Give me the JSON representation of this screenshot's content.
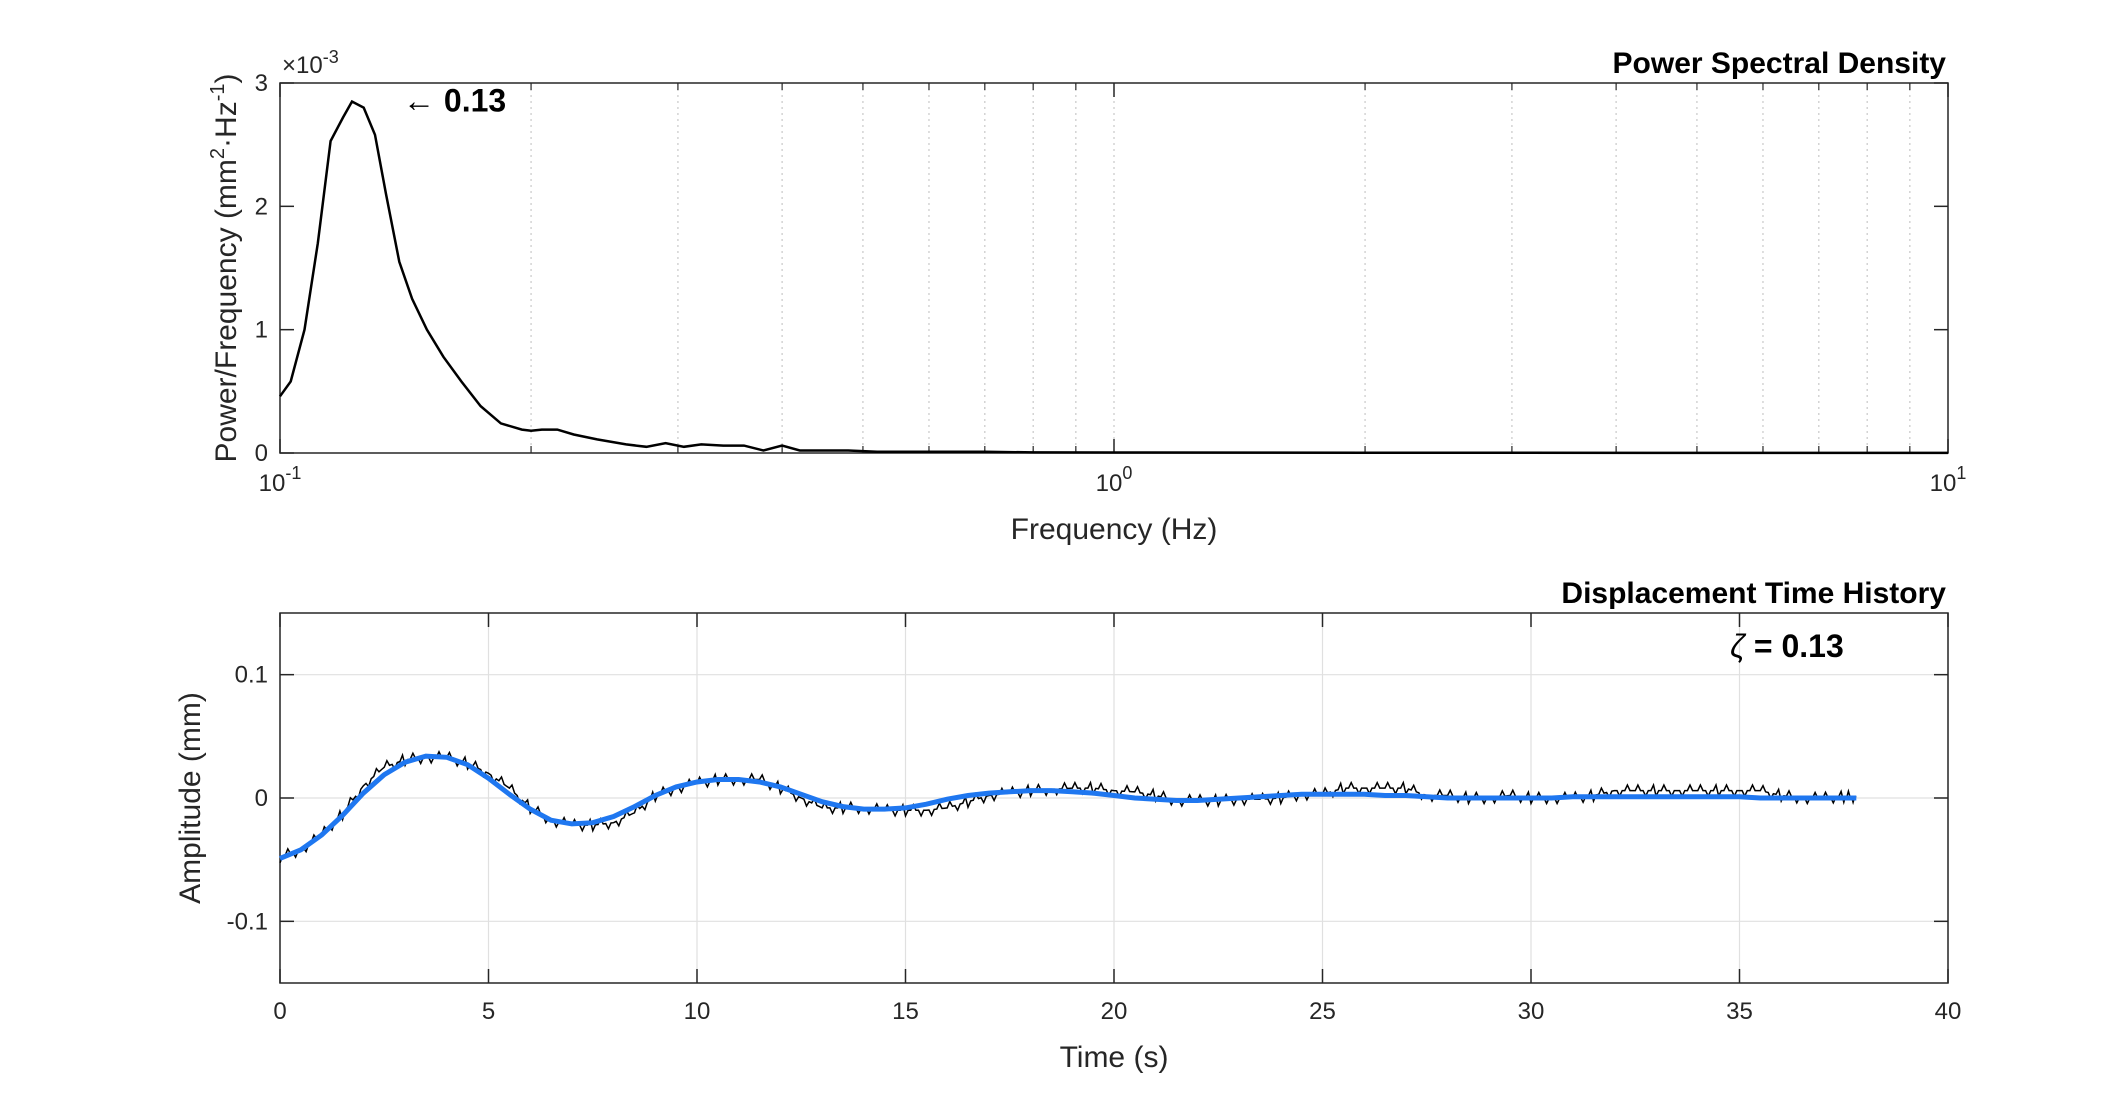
{
  "chart_data": [
    {
      "type": "line",
      "title": "Power Spectral Density",
      "xlabel": "Frequency (Hz)",
      "ylabel": "Power/Frequency (mm²·Hz⁻¹)",
      "ylabel_main": "Power/Frequency (mm",
      "ylabel_sup1": "2",
      "ylabel_mid": "·Hz",
      "ylabel_sup2": "-1",
      "ylabel_end": ")",
      "xscale": "log",
      "xlim": [
        0.1,
        10
      ],
      "ylim": [
        0,
        0.003
      ],
      "y_exponent_label": "×10",
      "y_exponent_value": "-3",
      "x_tick_base": "10",
      "x_ticks": [
        {
          "value": 0.1,
          "exp": "-1"
        },
        {
          "value": 1,
          "exp": "0"
        },
        {
          "value": 10,
          "exp": "1"
        }
      ],
      "y_ticks": [
        {
          "value": 0,
          "label": "0"
        },
        {
          "value": 0.001,
          "label": "1"
        },
        {
          "value": 0.002,
          "label": "2"
        },
        {
          "value": 0.003,
          "label": "3"
        }
      ],
      "grid": "x-minor-dotted",
      "annotation": {
        "text": "← 0.13",
        "x": 0.13,
        "y": 0.00285
      },
      "series": [
        {
          "color": "#000000",
          "x": [
            0.1,
            0.103,
            0.107,
            0.111,
            0.115,
            0.119,
            0.122,
            0.126,
            0.13,
            0.134,
            0.139,
            0.144,
            0.15,
            0.157,
            0.165,
            0.174,
            0.184,
            0.195,
            0.2,
            0.206,
            0.215,
            0.225,
            0.24,
            0.26,
            0.275,
            0.29,
            0.305,
            0.32,
            0.34,
            0.36,
            0.38,
            0.4,
            0.42,
            0.45,
            0.48,
            0.52,
            0.56,
            0.6,
            0.7,
            0.8,
            1.0,
            1.5,
            2.0,
            3.0,
            5.0,
            7.0,
            10.0
          ],
          "y": [
            0.00046,
            0.00058,
            0.001,
            0.0017,
            0.00253,
            0.00272,
            0.00285,
            0.0028,
            0.00258,
            0.0021,
            0.00155,
            0.00125,
            0.001,
            0.00078,
            0.00058,
            0.00038,
            0.00024,
            0.00019,
            0.00018,
            0.00019,
            0.00019,
            0.00015,
            0.00011,
            7e-05,
            5e-05,
            8e-05,
            5e-05,
            7e-05,
            6e-05,
            6e-05,
            2e-05,
            6e-05,
            2e-05,
            2e-05,
            2e-05,
            1e-05,
            1e-05,
            1e-05,
            1e-05,
            5e-06,
            4e-06,
            3e-06,
            2e-06,
            2e-06,
            1e-06,
            1e-06,
            1e-06
          ]
        }
      ]
    },
    {
      "type": "line",
      "title": "Displacement Time History",
      "xlabel": "Time (s)",
      "ylabel": "Amplitude (mm)",
      "xlim": [
        0,
        40
      ],
      "ylim": [
        -0.15,
        0.15
      ],
      "x_ticks": [
        0,
        5,
        10,
        15,
        20,
        25,
        30,
        35,
        40
      ],
      "y_ticks": [
        {
          "value": -0.1,
          "label": "-0.1"
        },
        {
          "value": 0,
          "label": "0"
        },
        {
          "value": 0.1,
          "label": "0.1"
        }
      ],
      "grid": "major",
      "annotation": {
        "symbol": "ζ",
        "text": " = 0.13"
      },
      "series": [
        {
          "color": "#000000",
          "x": [
            0,
            0.5,
            1,
            1.5,
            2,
            2.5,
            3,
            3.5,
            4,
            4.5,
            5,
            5.5,
            6,
            6.5,
            7,
            7.5,
            8,
            8.5,
            9,
            9.5,
            10,
            10.5,
            11,
            11.5,
            12,
            12.5,
            13,
            13.5,
            14,
            14.5,
            15,
            15.5,
            16,
            16.5,
            17,
            17.5,
            18,
            18.5,
            19,
            19.5,
            20,
            20.5,
            21,
            21.5,
            22,
            22.5,
            23,
            23.5,
            24,
            24.5,
            25,
            25.5,
            26,
            26.5,
            27,
            27.5,
            28,
            28.5,
            29,
            29.5,
            30,
            30.5,
            31,
            31.5,
            32,
            32.5,
            33,
            33.5,
            34,
            34.5,
            35,
            35.5,
            36,
            36.5,
            37,
            37.5,
            37.8
          ],
          "y": [
            -0.048,
            -0.042,
            -0.03,
            -0.013,
            0.01,
            0.025,
            0.031,
            0.033,
            0.033,
            0.028,
            0.02,
            0.008,
            -0.008,
            -0.018,
            -0.022,
            -0.022,
            -0.02,
            -0.012,
            0.002,
            0.008,
            0.012,
            0.015,
            0.015,
            0.015,
            0.008,
            0.0,
            -0.008,
            -0.008,
            -0.008,
            -0.01,
            -0.01,
            -0.01,
            -0.008,
            -0.003,
            0.002,
            0.004,
            0.006,
            0.007,
            0.008,
            0.008,
            0.006,
            0.005,
            0.002,
            -0.002,
            -0.002,
            -0.002,
            -0.001,
            -0.001,
            0.0,
            0.003,
            0.003,
            0.008,
            0.008,
            0.008,
            0.008,
            0.002,
            0.002,
            0.0,
            0.0,
            0.002,
            0.0,
            0.0,
            0.0,
            0.002,
            0.006,
            0.006,
            0.006,
            0.006,
            0.006,
            0.006,
            0.006,
            0.006,
            0.002,
            0.0,
            0.0,
            0.001,
            0.001
          ]
        },
        {
          "color": "#1f77f0",
          "x": [
            0,
            0.5,
            1,
            1.5,
            2,
            2.5,
            3,
            3.5,
            4,
            4.5,
            5,
            5.5,
            6,
            6.5,
            7,
            7.5,
            8,
            8.5,
            9,
            9.5,
            10,
            10.5,
            11,
            11.5,
            12,
            12.5,
            13,
            13.5,
            14,
            14.5,
            15,
            15.5,
            16,
            16.5,
            17,
            17.5,
            18,
            18.5,
            19,
            19.5,
            20,
            20.5,
            21,
            21.5,
            22,
            22.5,
            23,
            23.5,
            24,
            24.5,
            25,
            25.5,
            26,
            26.5,
            27,
            27.5,
            28,
            28.5,
            29,
            29.5,
            30,
            30.5,
            31,
            31.5,
            32,
            32.5,
            33,
            33.5,
            34,
            34.5,
            35,
            35.5,
            36,
            36.5,
            37,
            37.5,
            37.8
          ],
          "y": [
            -0.049,
            -0.042,
            -0.03,
            -0.014,
            0.004,
            0.019,
            0.029,
            0.034,
            0.033,
            0.027,
            0.016,
            0.003,
            -0.009,
            -0.018,
            -0.021,
            -0.02,
            -0.015,
            -0.007,
            0.002,
            0.009,
            0.013,
            0.015,
            0.015,
            0.013,
            0.009,
            0.003,
            -0.003,
            -0.007,
            -0.009,
            -0.009,
            -0.008,
            -0.005,
            -0.001,
            0.002,
            0.004,
            0.005,
            0.006,
            0.006,
            0.005,
            0.004,
            0.002,
            0.0,
            -0.001,
            -0.002,
            -0.002,
            -0.001,
            0.0,
            0.001,
            0.002,
            0.003,
            0.003,
            0.003,
            0.003,
            0.002,
            0.002,
            0.001,
            0.0,
            0.0,
            0.0,
            0.0,
            0.0,
            0.0,
            0.001,
            0.001,
            0.001,
            0.001,
            0.001,
            0.001,
            0.001,
            0.001,
            0.001,
            0.0,
            0.0,
            0.0,
            0.0,
            0.0,
            0.0
          ]
        }
      ]
    }
  ]
}
